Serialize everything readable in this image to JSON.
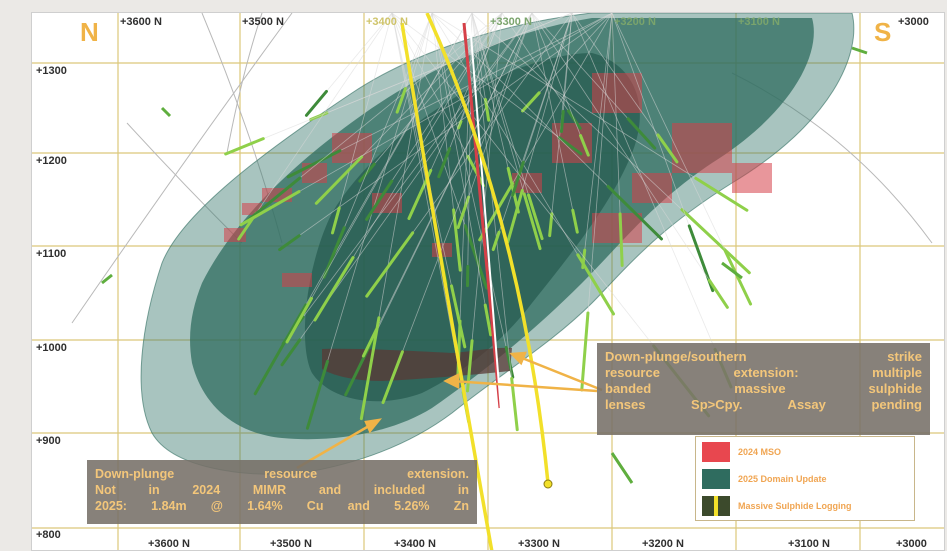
{
  "compass": {
    "north": "N",
    "south": "S"
  },
  "grid": {
    "top_labels": [
      "+3600 N",
      "+3500 N",
      "+3400 N",
      "+3300 N",
      "+3200 N",
      "+3100 N",
      "+3000"
    ],
    "bottom_labels": [
      "+3600 N",
      "+3500 N",
      "+3400 N",
      "+3300 N",
      "+3200 N",
      "+3100 N",
      "+3000"
    ],
    "elevation_labels": [
      "+1300",
      "+1200",
      "+1100",
      "+1000",
      "+900",
      "+800"
    ]
  },
  "callouts": {
    "right": {
      "lines": [
        "Down-plunge/southern strike",
        "resource extension: multiple",
        "banded massive sulphide",
        "lenses Sp>Cpy. Assay pending"
      ]
    },
    "left": {
      "lines": [
        "Down-plunge resource extension.",
        "Not in 2024 MIMR and included in",
        "2025: 1.84m @ 1.64% Cu and 5.26% Zn"
      ]
    }
  },
  "legend": {
    "items": [
      {
        "label": "2024 MSO",
        "color": "#e8474f"
      },
      {
        "label": "2025 Domain Update",
        "color": "#2f6c5f"
      },
      {
        "label": "Massive Sulphide Logging",
        "color": "#3c4a2c"
      }
    ]
  },
  "colors": {
    "grid_line": "#dcc77a",
    "domain_fill": "#2f6c5f",
    "mso_fill": "#d54048",
    "drill_trace": "#d9d9d9",
    "main_hole": "#f2e02a",
    "label_accent": "#f0b347"
  },
  "icons": [
    "arrow-icon",
    "drill-trace-icon"
  ]
}
